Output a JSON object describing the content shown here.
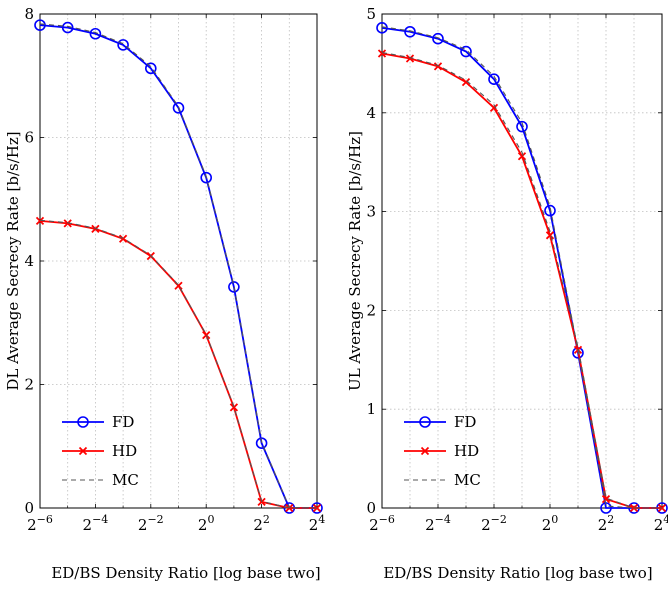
{
  "chart_data": [
    {
      "type": "line",
      "ylabel": "DL Average Secrecy Rate [b/s/Hz]",
      "xlabel": "ED/BS Density Ratio [log base two]",
      "xscale": "log2",
      "xlim": [
        -6,
        4
      ],
      "ylim": [
        0,
        8
      ],
      "xticks": [
        -6,
        -4,
        -2,
        0,
        2,
        4
      ],
      "xtick_labels": [
        {
          "base": "2",
          "exp": "−6"
        },
        {
          "base": "2",
          "exp": "−4"
        },
        {
          "base": "2",
          "exp": "−2"
        },
        {
          "base": "2",
          "exp": "0"
        },
        {
          "base": "2",
          "exp": "2"
        },
        {
          "base": "2",
          "exp": "4"
        }
      ],
      "yticks": [
        "0",
        "2",
        "4",
        "6",
        "8"
      ],
      "grid": true,
      "legend_position": "bottom-left",
      "x": [
        -6,
        -5,
        -4,
        -3,
        -2,
        -1,
        0,
        1,
        2,
        3,
        4
      ],
      "series": [
        {
          "name": "FD",
          "color": "#0000ff",
          "marker": "circle",
          "style": "solid",
          "values": [
            7.82,
            7.78,
            7.68,
            7.5,
            7.12,
            6.48,
            5.35,
            3.58,
            1.05,
            0.0,
            0.0
          ]
        },
        {
          "name": "HD",
          "color": "#ff0000",
          "marker": "x",
          "style": "solid",
          "values": [
            4.65,
            4.61,
            4.52,
            4.36,
            4.08,
            3.6,
            2.8,
            1.63,
            0.1,
            0.0,
            0.0
          ]
        },
        {
          "name": "MC",
          "color": "#555555",
          "marker": "none",
          "style": "dashed",
          "curves": [
            [
              7.84,
              7.8,
              7.7,
              7.52,
              7.15,
              6.5,
              5.37,
              3.6,
              1.07,
              0.01,
              0.0
            ],
            [
              4.66,
              4.62,
              4.53,
              4.37,
              4.09,
              3.61,
              2.81,
              1.64,
              0.11,
              0.0,
              0.0
            ]
          ]
        }
      ]
    },
    {
      "type": "line",
      "ylabel": "UL Average Secrecy Rate [b/s/Hz]",
      "xlabel": "ED/BS Density Ratio [log base two]",
      "xscale": "log2",
      "xlim": [
        -6,
        4
      ],
      "ylim": [
        0,
        5
      ],
      "xticks": [
        -6,
        -4,
        -2,
        0,
        2,
        4
      ],
      "xtick_labels": [
        {
          "base": "2",
          "exp": "−6"
        },
        {
          "base": "2",
          "exp": "−4"
        },
        {
          "base": "2",
          "exp": "−2"
        },
        {
          "base": "2",
          "exp": "0"
        },
        {
          "base": "2",
          "exp": "2"
        },
        {
          "base": "2",
          "exp": "4"
        }
      ],
      "yticks": [
        "0",
        "1",
        "2",
        "3",
        "4",
        "5"
      ],
      "grid": true,
      "legend_position": "bottom-left",
      "x": [
        -6,
        -5,
        -4,
        -3,
        -2,
        -1,
        0,
        1,
        2,
        3,
        4
      ],
      "series": [
        {
          "name": "FD",
          "color": "#0000ff",
          "marker": "circle",
          "style": "solid",
          "values": [
            4.86,
            4.82,
            4.75,
            4.62,
            4.34,
            3.86,
            3.01,
            1.57,
            0.0,
            0.0,
            0.0
          ]
        },
        {
          "name": "HD",
          "color": "#ff0000",
          "marker": "x",
          "style": "solid",
          "values": [
            4.6,
            4.55,
            4.47,
            4.31,
            4.05,
            3.56,
            2.76,
            1.6,
            0.09,
            0.0,
            0.0
          ]
        },
        {
          "name": "MC",
          "color": "#555555",
          "marker": "none",
          "style": "dashed",
          "curves": [
            [
              4.87,
              4.83,
              4.76,
              4.64,
              4.37,
              3.9,
              3.05,
              1.6,
              0.02,
              0.0,
              0.0
            ],
            [
              4.61,
              4.56,
              4.48,
              4.33,
              4.08,
              3.6,
              2.8,
              1.63,
              0.1,
              0.0,
              0.0
            ]
          ]
        }
      ]
    }
  ]
}
